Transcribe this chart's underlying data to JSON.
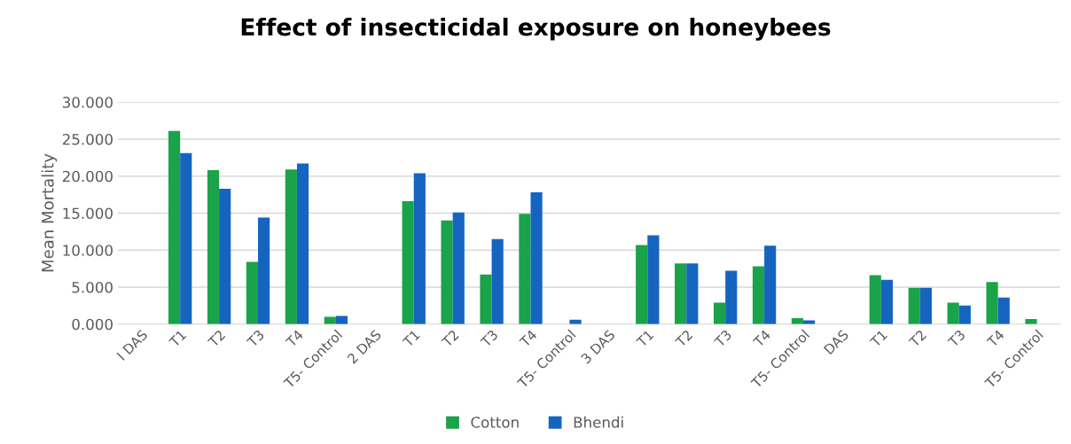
{
  "chart_data": {
    "type": "bar",
    "title": "Effect of insecticidal exposure on honeybees",
    "ylabel": "Mean Mortality",
    "categories": [
      "I DAS",
      "T1",
      "T2",
      "T3",
      "T4",
      "T5- Control",
      "2 DAS",
      "T1",
      "T2",
      "T3",
      "T4",
      "T5- Control",
      "3 DAS",
      "T1",
      "T2",
      "T3",
      "T4",
      "T5- Control",
      "DAS",
      "T1",
      "T2",
      "T3",
      "T4",
      "T5- Control"
    ],
    "series": [
      {
        "name": "Cotton",
        "color": "#1aa34a",
        "values": [
          null,
          26.1,
          20.8,
          8.4,
          20.9,
          1.0,
          null,
          16.6,
          14.0,
          6.7,
          14.9,
          0,
          null,
          10.7,
          8.2,
          2.9,
          7.8,
          0.8,
          null,
          6.6,
          4.9,
          2.9,
          5.7,
          0.7
        ]
      },
      {
        "name": "Bhendi",
        "color": "#1565c0",
        "values": [
          null,
          23.1,
          18.3,
          14.4,
          21.7,
          1.1,
          null,
          20.4,
          15.1,
          11.5,
          17.8,
          0.6,
          null,
          12.0,
          8.2,
          7.2,
          10.6,
          0.5,
          null,
          6.0,
          4.9,
          2.5,
          3.6,
          0
        ]
      }
    ],
    "ylim": [
      0,
      30
    ],
    "yticks": [
      {
        "value": 0,
        "label": "0.000"
      },
      {
        "value": 5,
        "label": "5.000"
      },
      {
        "value": 10,
        "label": "10.000"
      },
      {
        "value": 15,
        "label": "15.000"
      },
      {
        "value": 20,
        "label": "20.000"
      },
      {
        "value": 25,
        "label": "25.000"
      },
      {
        "value": 30,
        "label": "30.000"
      }
    ],
    "grid": "y",
    "legend": "bottom"
  }
}
